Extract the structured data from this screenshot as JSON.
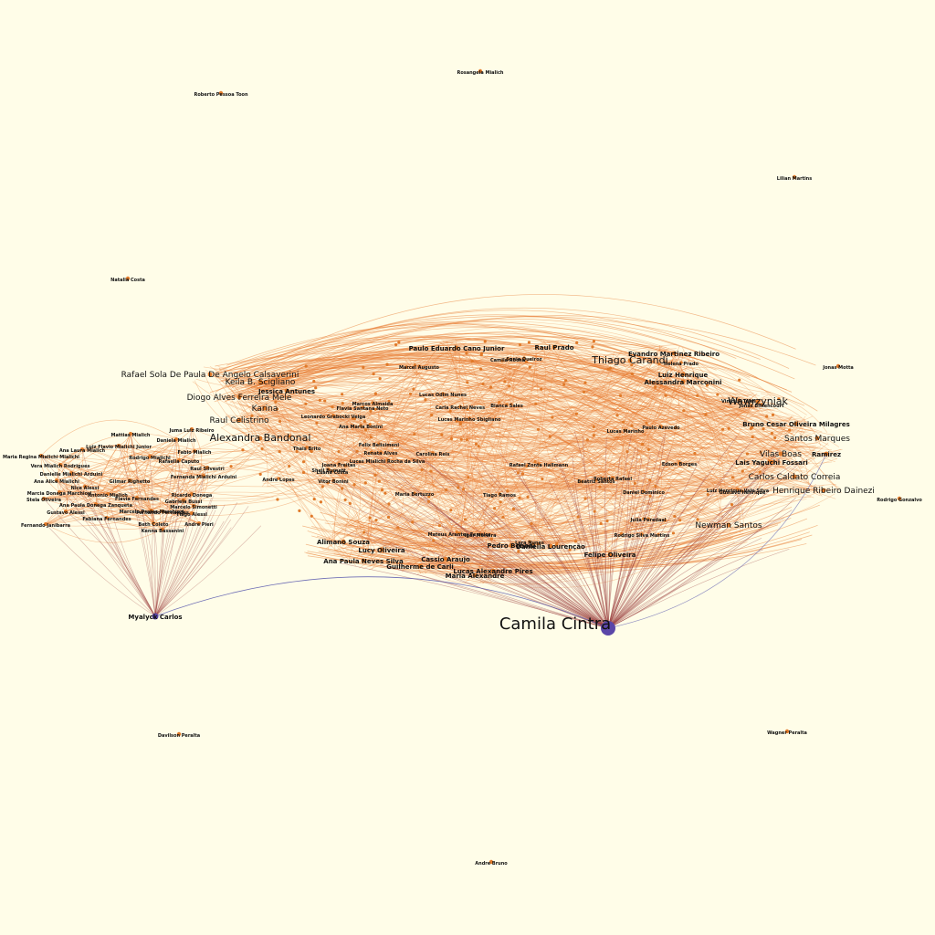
{
  "graph": {
    "title": "",
    "colors": {
      "background": "#fffde8",
      "node": "#e07a2a",
      "hub": "#5a46a8",
      "edge_orange": "#e8752a",
      "edge_red": "#9a3b3b",
      "edge_blue": "#4a4aa8"
    },
    "hubs": [
      {
        "id": "camila",
        "label": "Camila Cintra"
      },
      {
        "id": "myalyck",
        "label": "Myalyck Carlos"
      }
    ],
    "isolated_nodes": [
      {
        "id": "n_rosa",
        "label": "Rosangela Mialich"
      },
      {
        "id": "n_roberto",
        "label": "Roberto Pessoa Toon"
      },
      {
        "id": "n_lilian",
        "label": "Lilian Martins"
      },
      {
        "id": "n_natalia",
        "label": "Natalia Costa"
      },
      {
        "id": "n_jonas",
        "label": "Jonas Motta"
      },
      {
        "id": "n_rodrigo",
        "label": "Rodrigo Gonzalvo"
      },
      {
        "id": "n_davilson",
        "label": "Davilson Peralta"
      },
      {
        "id": "n_wagner",
        "label": "Wagner Peralta"
      },
      {
        "id": "n_andre",
        "label": "Andre Bruno"
      }
    ],
    "left_cluster": [
      {
        "id": "l1",
        "label": "Luiz Flavio Mialichi Junior"
      },
      {
        "id": "l2",
        "label": "Ana Laura Mialich"
      },
      {
        "id": "l3",
        "label": "Maria Regina Mialichi Mialichi"
      },
      {
        "id": "l4",
        "label": "Vera Mialich Rodrigues"
      },
      {
        "id": "l5",
        "label": "Danielle Mialichi Arduini"
      },
      {
        "id": "l6",
        "label": "Ana Alice Mialichi"
      },
      {
        "id": "l7",
        "label": "Marcia Donega Marchiori"
      },
      {
        "id": "l8",
        "label": "Stela Oliveira"
      },
      {
        "id": "l9",
        "label": "Ana Paula Donega Zanqueta"
      },
      {
        "id": "l10",
        "label": "Gustavo Alessi"
      },
      {
        "id": "l11",
        "label": "Fabiana Fernandes"
      },
      {
        "id": "l12",
        "label": "Fernando Janibarra"
      },
      {
        "id": "l13",
        "label": "Nice Alessi"
      },
      {
        "id": "l14",
        "label": "Antonio Mialich"
      },
      {
        "id": "l15",
        "label": "Flavia Fernandes"
      },
      {
        "id": "l16",
        "label": "Marcelo Prates Marchiori"
      },
      {
        "id": "l17",
        "label": "Fernando Fernandes"
      },
      {
        "id": "l18",
        "label": "Beth Coleto"
      },
      {
        "id": "l19",
        "label": "Kenna Bassanini"
      },
      {
        "id": "l20",
        "label": "Mattias Mialich"
      },
      {
        "id": "l21",
        "label": "Daniela Mialich"
      },
      {
        "id": "l22",
        "label": "Rodrigo Mialichi"
      },
      {
        "id": "l23",
        "label": "Rafaella Caputo"
      },
      {
        "id": "l24",
        "label": "Fernanda Mialichi Arduini"
      },
      {
        "id": "l25",
        "label": "Raul Silvestri"
      },
      {
        "id": "l26",
        "label": "Ricardo Donega"
      },
      {
        "id": "l27",
        "label": "Gabriela Bussi"
      },
      {
        "id": "l28",
        "label": "Marcelo Simonetti"
      },
      {
        "id": "l29",
        "label": "Tiago Alessi"
      },
      {
        "id": "l30",
        "label": "Andre Pieri"
      },
      {
        "id": "l31",
        "label": "Juma Luiz Ribeiro"
      },
      {
        "id": "l32",
        "label": "Fabio Mialich"
      },
      {
        "id": "l33",
        "label": "Gilmar Righetto"
      }
    ],
    "main_cluster_large": [
      {
        "id": "m1",
        "label": "Rafael Sola De Paula De Angelo Calsaverini"
      },
      {
        "id": "m2",
        "label": "Keila B. Scigliano"
      },
      {
        "id": "m3",
        "label": "Diogo Alves Ferreira Mele"
      },
      {
        "id": "m4",
        "label": "Karina"
      },
      {
        "id": "m5",
        "label": "Raul Celistrino"
      },
      {
        "id": "m6",
        "label": "Alexandra Bandonal"
      },
      {
        "id": "m7",
        "label": "Evandro Martinez Ribeiro"
      },
      {
        "id": "m8",
        "label": "Wawrzyniak"
      },
      {
        "id": "m9",
        "label": "Bruno Cesar Oliveira Milagres"
      },
      {
        "id": "m10",
        "label": "Santos Marques"
      },
      {
        "id": "m11",
        "label": "Vilas Boas"
      },
      {
        "id": "m12",
        "label": "Ramirez"
      },
      {
        "id": "m13",
        "label": "Carlos Caldato Correia"
      },
      {
        "id": "m14",
        "label": "Henrique Ribeiro Dainezi"
      },
      {
        "id": "m15",
        "label": "Newman Santos"
      },
      {
        "id": "m16",
        "label": "Felipe Oliveira"
      },
      {
        "id": "m17",
        "label": "Ana Paula Neves Silva"
      },
      {
        "id": "m18",
        "label": "Lucas Alexandre Pires"
      },
      {
        "id": "m19",
        "label": "Guilherme de Carli"
      },
      {
        "id": "m20",
        "label": "Daniella Lourenção"
      },
      {
        "id": "m21",
        "label": "Raul Prado"
      },
      {
        "id": "m22",
        "label": "Alessandra Marconini"
      },
      {
        "id": "m23",
        "label": "Luiz Henrique"
      },
      {
        "id": "m24",
        "label": "Lais Yaguchi Fossari"
      },
      {
        "id": "m25",
        "label": "Thiago Carandi"
      },
      {
        "id": "m26",
        "label": "Paulo Eduardo Cano Junior"
      },
      {
        "id": "m27",
        "label": "Lucy Oliveira"
      },
      {
        "id": "m28",
        "label": "Alimano Souza"
      },
      {
        "id": "m29",
        "label": "Pedro Bononi"
      },
      {
        "id": "m30",
        "label": "Maria Alexandre"
      },
      {
        "id": "m31",
        "label": "Cassio Araujo"
      },
      {
        "id": "m32",
        "label": "Jessica Antunes"
      }
    ],
    "main_cluster_small": [
      {
        "id": "s1",
        "label": "Thais Brito"
      },
      {
        "id": "s2",
        "label": "Roberta Rafael"
      },
      {
        "id": "s3",
        "label": "Shell Burnett"
      },
      {
        "id": "s4",
        "label": "Luiz Henrique Vale Silva"
      },
      {
        "id": "s5",
        "label": "Flavia Santana Neto"
      },
      {
        "id": "s6",
        "label": "Mateus Arantes Ferreira"
      },
      {
        "id": "s7",
        "label": "Lucas Marinho Sbigliano"
      },
      {
        "id": "s8",
        "label": "Felix Belisimeni"
      },
      {
        "id": "s9",
        "label": "Carla Rachel Neves"
      },
      {
        "id": "s10",
        "label": "Leonardo Grabocki Veiga"
      },
      {
        "id": "s11",
        "label": "Rafael Zonta Hallmann"
      },
      {
        "id": "s12",
        "label": "Jonas Bittencourt"
      },
      {
        "id": "s13",
        "label": "Daniel Dominico"
      },
      {
        "id": "s14",
        "label": "Lucas Marinho"
      },
      {
        "id": "s15",
        "label": "Vitor Bonini"
      },
      {
        "id": "s16",
        "label": "Lucas Odim Nunes"
      },
      {
        "id": "s17",
        "label": "Rodrigo Silva Martins"
      },
      {
        "id": "s18",
        "label": "Lucas Mialichi Rocha da Silva"
      },
      {
        "id": "s19",
        "label": "Ana Maria Bonini"
      },
      {
        "id": "s20",
        "label": "Julia Peredaal"
      },
      {
        "id": "s21",
        "label": "Maria Bertuzzo"
      },
      {
        "id": "s22",
        "label": "Gustavo Henrique"
      },
      {
        "id": "s23",
        "label": "Lara Nunes"
      },
      {
        "id": "s24",
        "label": "Renata Alves"
      },
      {
        "id": "s25",
        "label": "Marcos Almeida"
      },
      {
        "id": "s26",
        "label": "Sonia Queiroz"
      },
      {
        "id": "s27",
        "label": "Beatriz Santos"
      },
      {
        "id": "s28",
        "label": "Carolina Reis"
      },
      {
        "id": "s29",
        "label": "Edson Borges"
      },
      {
        "id": "s30",
        "label": "Marcel Augusto"
      },
      {
        "id": "s31",
        "label": "Paulo Azevedo"
      },
      {
        "id": "s32",
        "label": "Luana Costa"
      },
      {
        "id": "s33",
        "label": "Andre Lopes"
      },
      {
        "id": "s34",
        "label": "Joana Freitas"
      },
      {
        "id": "s35",
        "label": "Tiago Ramos"
      },
      {
        "id": "s36",
        "label": "Bianca Sales"
      },
      {
        "id": "s37",
        "label": "Igor Moreira"
      },
      {
        "id": "s38",
        "label": "Helena Prado"
      },
      {
        "id": "s39",
        "label": "Vinicius Teles"
      },
      {
        "id": "s40",
        "label": "Camila Rocha"
      }
    ]
  }
}
